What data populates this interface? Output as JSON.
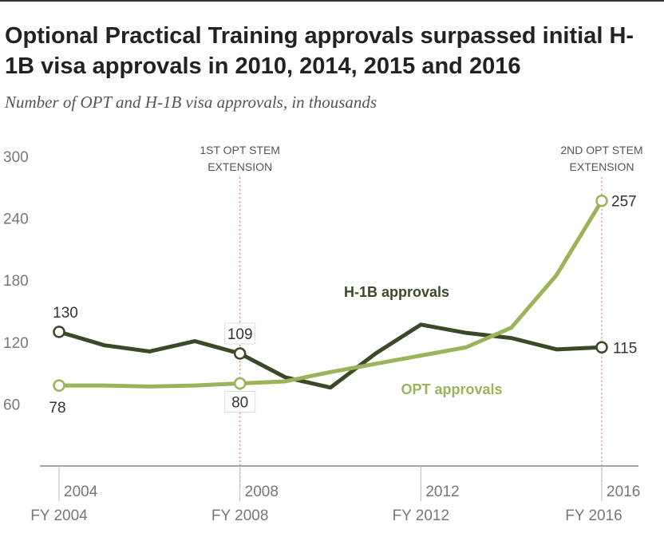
{
  "title": "Optional Practical Training approvals surpassed initial H-1B visa approvals in 2010, 2014, 2015 and 2016",
  "subtitle": "Number of OPT and H-1B visa approvals, in thousands",
  "colors": {
    "h1b": "#3a4a28",
    "opt": "#9bb35a",
    "reference": "#e08a8a",
    "axis": "#888888",
    "text": "#555555"
  },
  "chart_data": {
    "type": "line",
    "x": [
      2004,
      2005,
      2006,
      2007,
      2008,
      2009,
      2010,
      2011,
      2012,
      2013,
      2014,
      2015,
      2016
    ],
    "series": [
      {
        "name": "H-1B approvals",
        "values": [
          130,
          117,
          111,
          121,
          109,
          86,
          76,
          109,
          137,
          129,
          124,
          113,
          115
        ]
      },
      {
        "name": "OPT approvals",
        "values": [
          78,
          78,
          77,
          78,
          80,
          82,
          91,
          99,
          107,
          115,
          134,
          185,
          257
        ]
      }
    ],
    "ylim": [
      0,
      300
    ],
    "yticks": [
      60,
      120,
      180,
      240,
      300
    ],
    "xticks": [
      {
        "value": 2004,
        "upper": "2004",
        "lower": "FY 2004"
      },
      {
        "value": 2008,
        "upper": "2008",
        "lower": "FY 2008"
      },
      {
        "value": 2012,
        "upper": "2012",
        "lower": "FY 2012"
      },
      {
        "value": 2016,
        "upper": "2016",
        "lower": "FY 2016"
      }
    ],
    "reference_lines": [
      {
        "x": 2008,
        "label_line1": "1ST OPT STEM",
        "label_line2": "EXTENSION"
      },
      {
        "x": 2016,
        "label_line1": "2ND  OPT STEM",
        "label_line2": "EXTENSION"
      }
    ],
    "markers": [
      {
        "series": "H-1B approvals",
        "x": 2004,
        "label": "130"
      },
      {
        "series": "H-1B approvals",
        "x": 2008,
        "label": "109"
      },
      {
        "series": "H-1B approvals",
        "x": 2016,
        "label": "115"
      },
      {
        "series": "OPT approvals",
        "x": 2004,
        "label": "78"
      },
      {
        "series": "OPT approvals",
        "x": 2008,
        "label": "80"
      },
      {
        "series": "OPT approvals",
        "x": 2016,
        "label": "257"
      }
    ],
    "series_labels": [
      {
        "series": "H-1B approvals",
        "text": "H-1B approvals"
      },
      {
        "series": "OPT approvals",
        "text": "OPT approvals"
      }
    ],
    "grid": false
  }
}
